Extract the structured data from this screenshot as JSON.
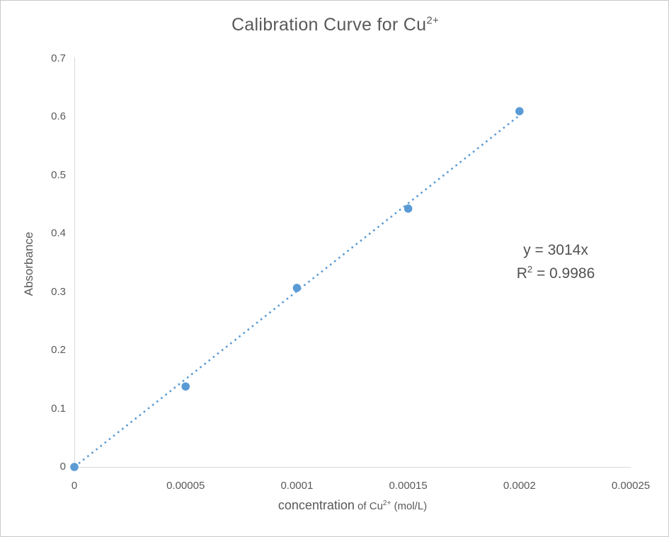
{
  "chart_data": {
    "type": "scatter",
    "title": "Calibration Curve for Cu²⁺",
    "title_parts": {
      "base": "Calibration Curve for Cu",
      "sup": "2+"
    },
    "xlabel": "concentration of Cu²⁺ (mol/L)",
    "xlabel_parts": {
      "emph": "concentration",
      "mid": " of Cu",
      "sup": "2+",
      "post": " (mol/L)"
    },
    "ylabel": "Absorbance",
    "x": [
      0,
      5e-05,
      0.0001,
      0.00015,
      0.0002
    ],
    "y": [
      0,
      0.138,
      0.307,
      0.443,
      0.61
    ],
    "xlim": [
      0,
      0.00025
    ],
    "ylim": [
      0,
      0.7
    ],
    "x_tick_values": [
      0,
      5e-05,
      0.0001,
      0.00015,
      0.0002,
      0.00025
    ],
    "x_tick_labels": [
      "0",
      "0.00005",
      "0.0001",
      "0.00015",
      "0.0002",
      "0.00025"
    ],
    "y_tick_values": [
      0,
      0.1,
      0.2,
      0.3,
      0.4,
      0.5,
      0.6,
      0.7
    ],
    "y_tick_labels": [
      "0",
      "0.1",
      "0.2",
      "0.3",
      "0.4",
      "0.5",
      "0.6",
      "0.7"
    ],
    "grid": false,
    "legend": false,
    "trendline": {
      "slope": 3014,
      "intercept": 0,
      "style": "dotted",
      "x_range": [
        0,
        0.0002
      ],
      "equation": "y = 3014x",
      "r_squared_label": "R² = 0.9986",
      "r2_parts": {
        "base": "R",
        "sup": "2",
        "rest": " = 0.9986"
      }
    },
    "colors": {
      "marker": "#5b9bd5",
      "trendline": "#5b9bd5",
      "axis_line": "#d9d9d9",
      "tick_text": "#595959",
      "title_text": "#595959",
      "annotation_text": "#515151"
    }
  }
}
